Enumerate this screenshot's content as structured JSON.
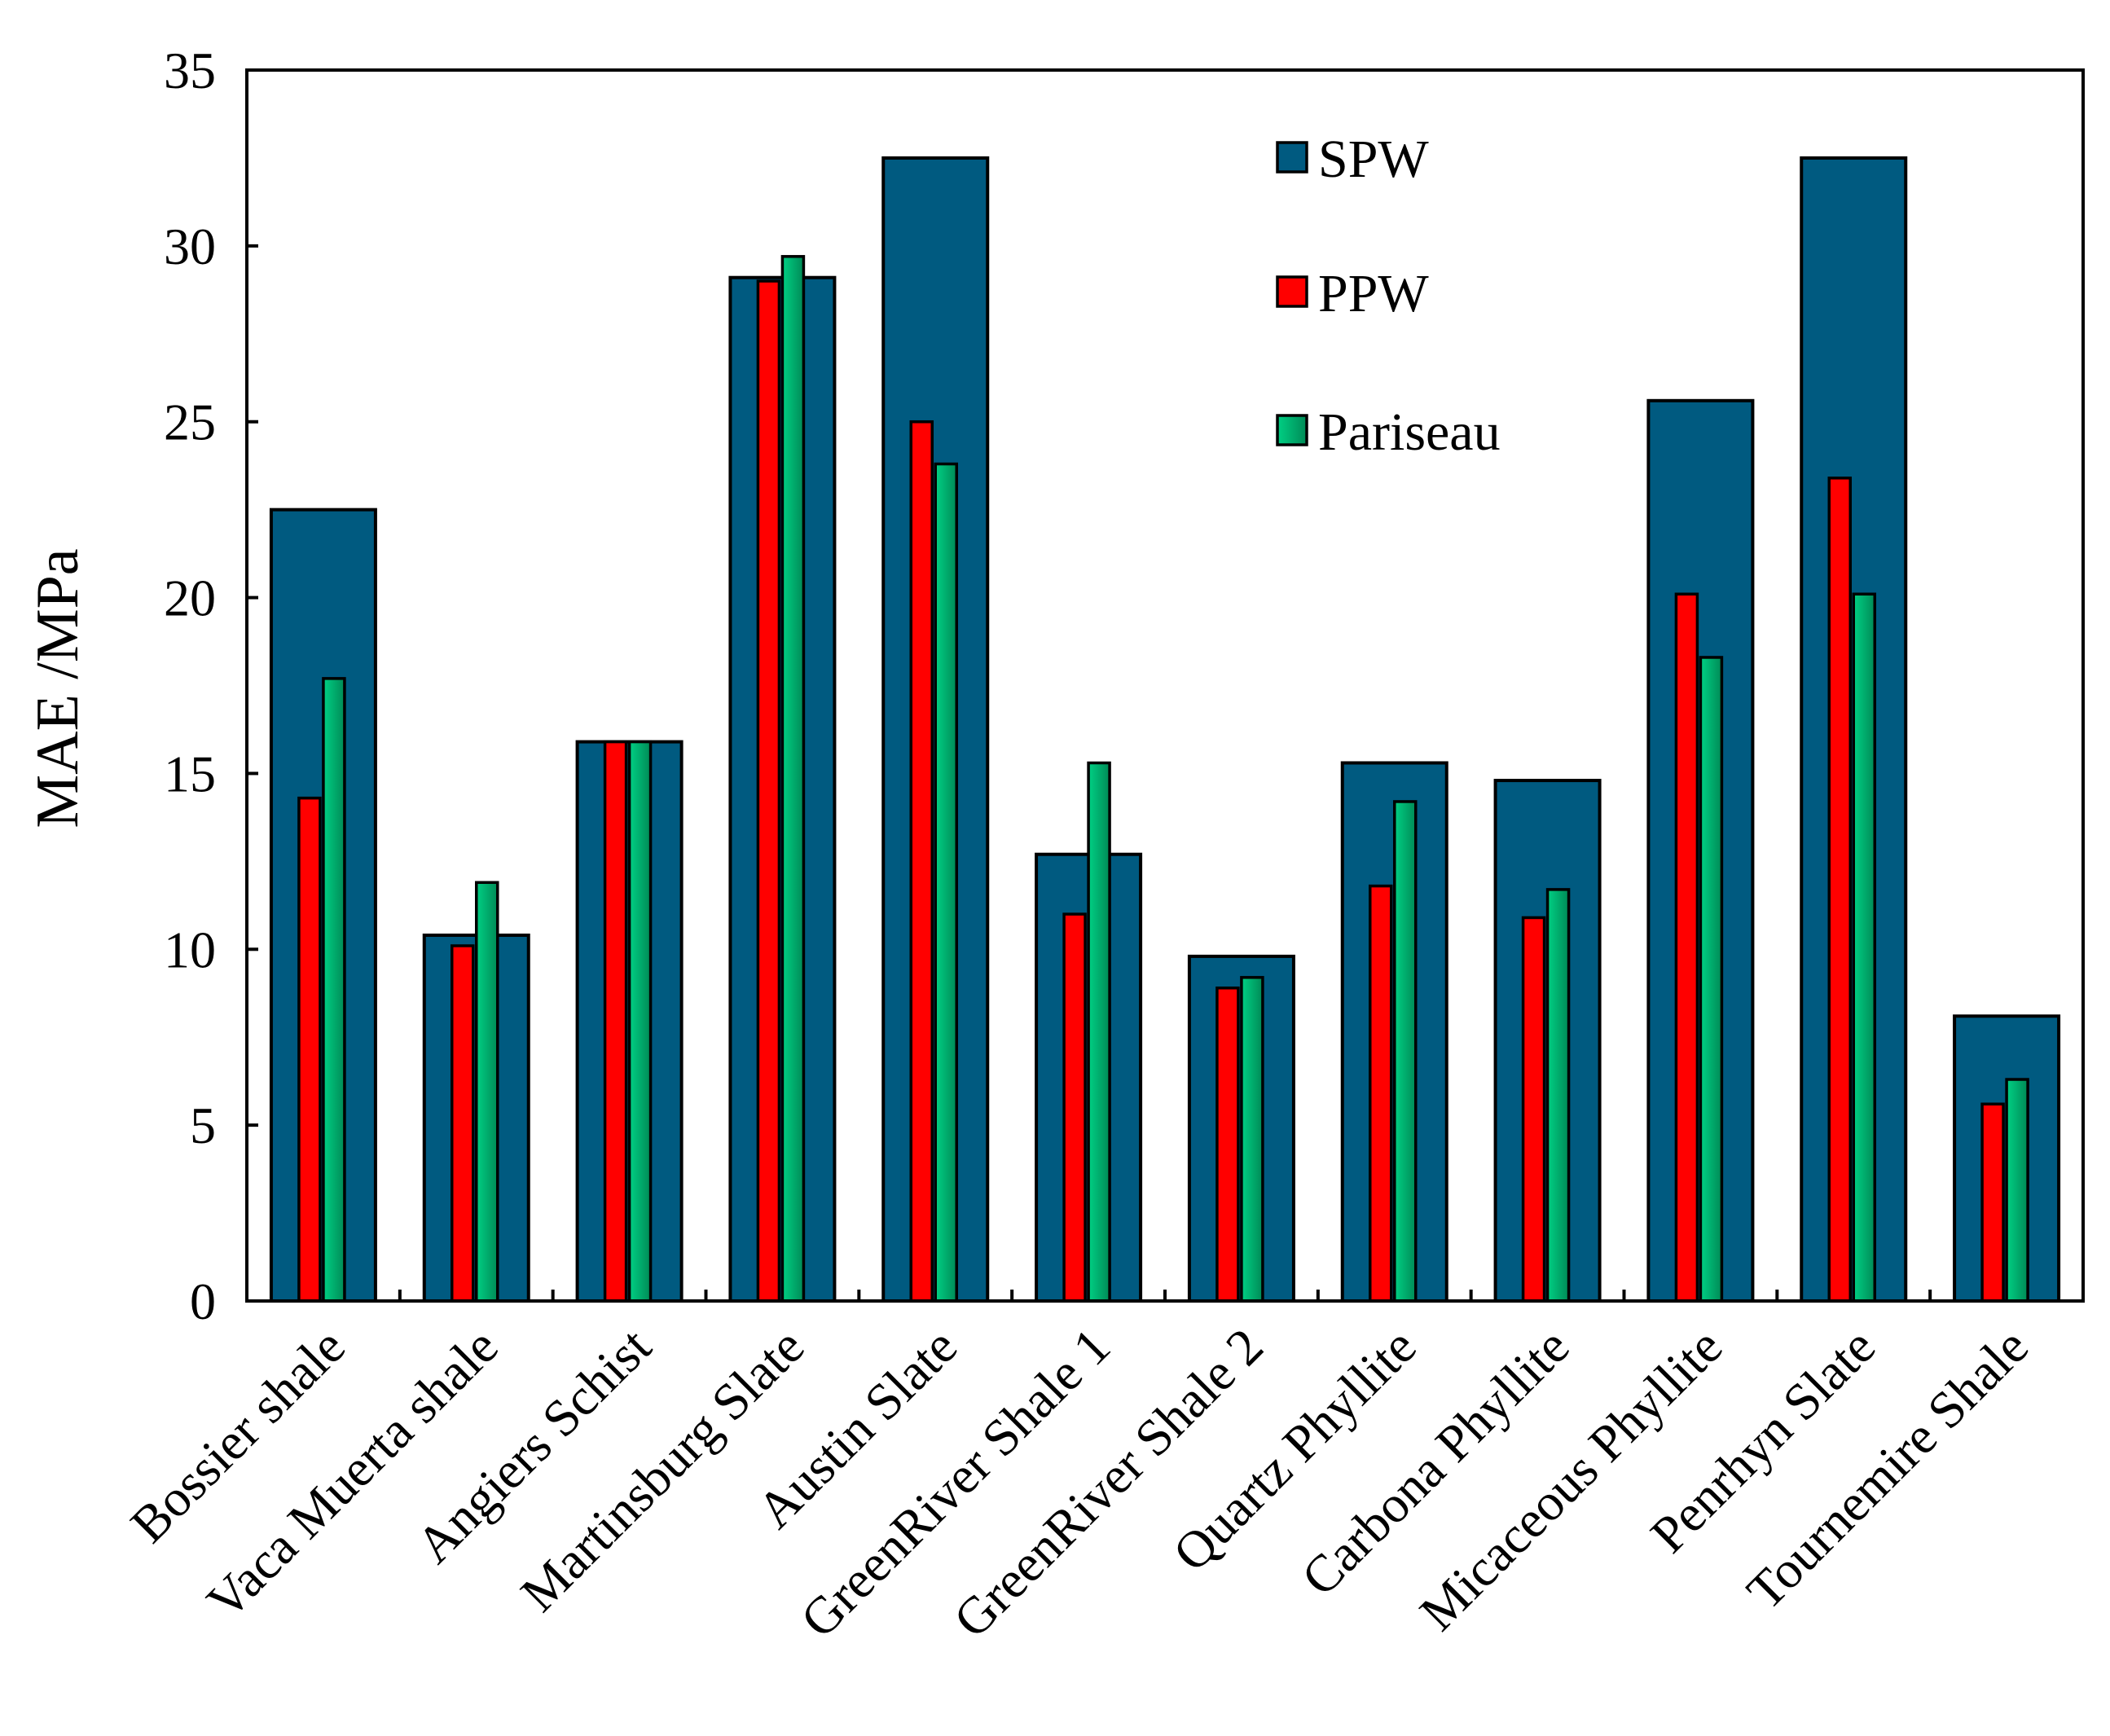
{
  "chart_data": {
    "type": "bar",
    "title": "",
    "xlabel": "",
    "ylabel": "MAE /MPa",
    "ylim": [
      0,
      35
    ],
    "yticks": [
      "0",
      "5",
      "10",
      "15",
      "20",
      "25",
      "30",
      "35"
    ],
    "grid": false,
    "legend_position": "top-right",
    "categories": [
      "Bossier shale",
      "Vaca Muerta shale",
      "Angiers Schist",
      "Martinsburg Slate",
      "Austin Slate",
      "GreenRiver Shale 1",
      "GreenRiver Shale 2",
      "Quartz Phyllite",
      "Carbona Phyllite",
      "Micaceous Phyllite",
      "Penrhyn Slate",
      "Tournemire Shale"
    ],
    "series": [
      {
        "name": "SPW",
        "color": "#005a80",
        "values": [
          22.5,
          10.4,
          15.9,
          29.1,
          32.5,
          12.7,
          9.8,
          15.3,
          14.8,
          25.6,
          32.5,
          8.1
        ]
      },
      {
        "name": "PPW",
        "color": "#ff0000",
        "values": [
          14.3,
          10.1,
          15.9,
          29.0,
          25.0,
          11.0,
          8.9,
          11.8,
          10.9,
          20.1,
          23.4,
          5.6
        ]
      },
      {
        "name": "Pariseau",
        "color": "#00a060",
        "values": [
          17.7,
          11.9,
          15.9,
          29.7,
          23.8,
          15.3,
          9.2,
          14.2,
          11.7,
          18.3,
          20.1,
          6.3
        ]
      }
    ]
  }
}
